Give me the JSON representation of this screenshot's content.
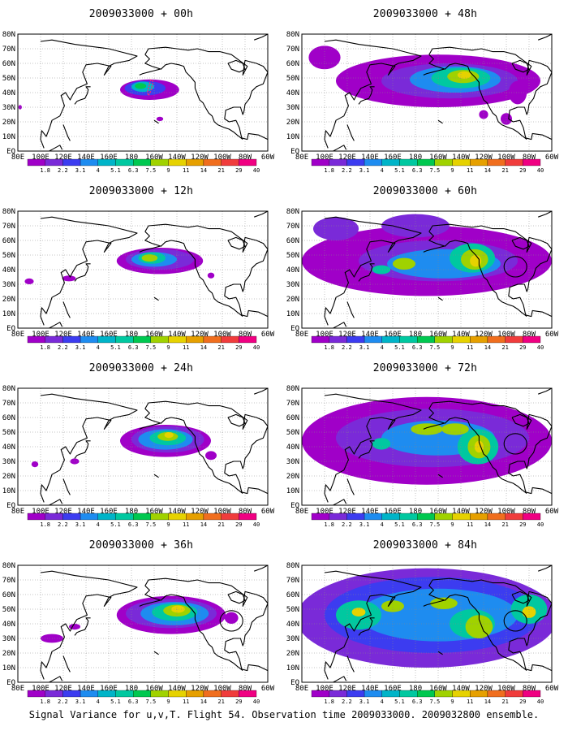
{
  "colors": {
    "scale": [
      "#a000c8",
      "#7a2ad8",
      "#3c3cf0",
      "#1e8cf0",
      "#00b4c8",
      "#00c8a0",
      "#00c850",
      "#a0d200",
      "#e6d200",
      "#e6a000",
      "#f06e1e",
      "#f03c3c",
      "#f00082"
    ],
    "coast": "#000000",
    "grid": "#888888"
  },
  "map": {
    "lat_labels": [
      "80N",
      "70N",
      "60N",
      "50N",
      "40N",
      "30N",
      "20N",
      "10N",
      "EQ"
    ],
    "lon_labels": [
      "80E",
      "100E",
      "120E",
      "140E",
      "160E",
      "180",
      "160W",
      "140W",
      "120W",
      "100W",
      "80W",
      "60W"
    ],
    "colorbar_labels": [
      "1.8",
      "2.2",
      "3.1",
      "4",
      "5.1",
      "6.3",
      "7.5",
      "9",
      "11",
      "14",
      "21",
      "29",
      "40"
    ]
  },
  "panels": [
    {
      "id": "p00",
      "title": "2009033000 + 00h",
      "lead": "00h",
      "spread": 0.25,
      "track": true,
      "circle": false
    },
    {
      "id": "p12",
      "title": "2009033000 + 12h",
      "lead": "12h",
      "spread": 0.35,
      "track": false,
      "circle": false
    },
    {
      "id": "p24",
      "title": "2009033000 + 24h",
      "lead": "24h",
      "spread": 0.45,
      "track": false,
      "circle": false
    },
    {
      "id": "p36",
      "title": "2009033000 + 36h",
      "lead": "36h",
      "spread": 0.55,
      "track": false,
      "circle": true
    },
    {
      "id": "p48",
      "title": "2009033000 + 48h",
      "lead": "48h",
      "spread": 0.68,
      "track": false,
      "circle": false
    },
    {
      "id": "p60",
      "title": "2009033000 + 60h",
      "lead": "60h",
      "spread": 0.8,
      "track": false,
      "circle": true
    },
    {
      "id": "p72",
      "title": "2009033000 + 72h",
      "lead": "72h",
      "spread": 0.9,
      "track": false,
      "circle": true
    },
    {
      "id": "p84",
      "title": "2009033000 + 84h",
      "lead": "84h",
      "spread": 1.0,
      "track": false,
      "circle": true
    }
  ],
  "footer": "Signal Variance for u,v,T. Flight 54. Observation time 2009033000. 2009032800 ensemble."
}
